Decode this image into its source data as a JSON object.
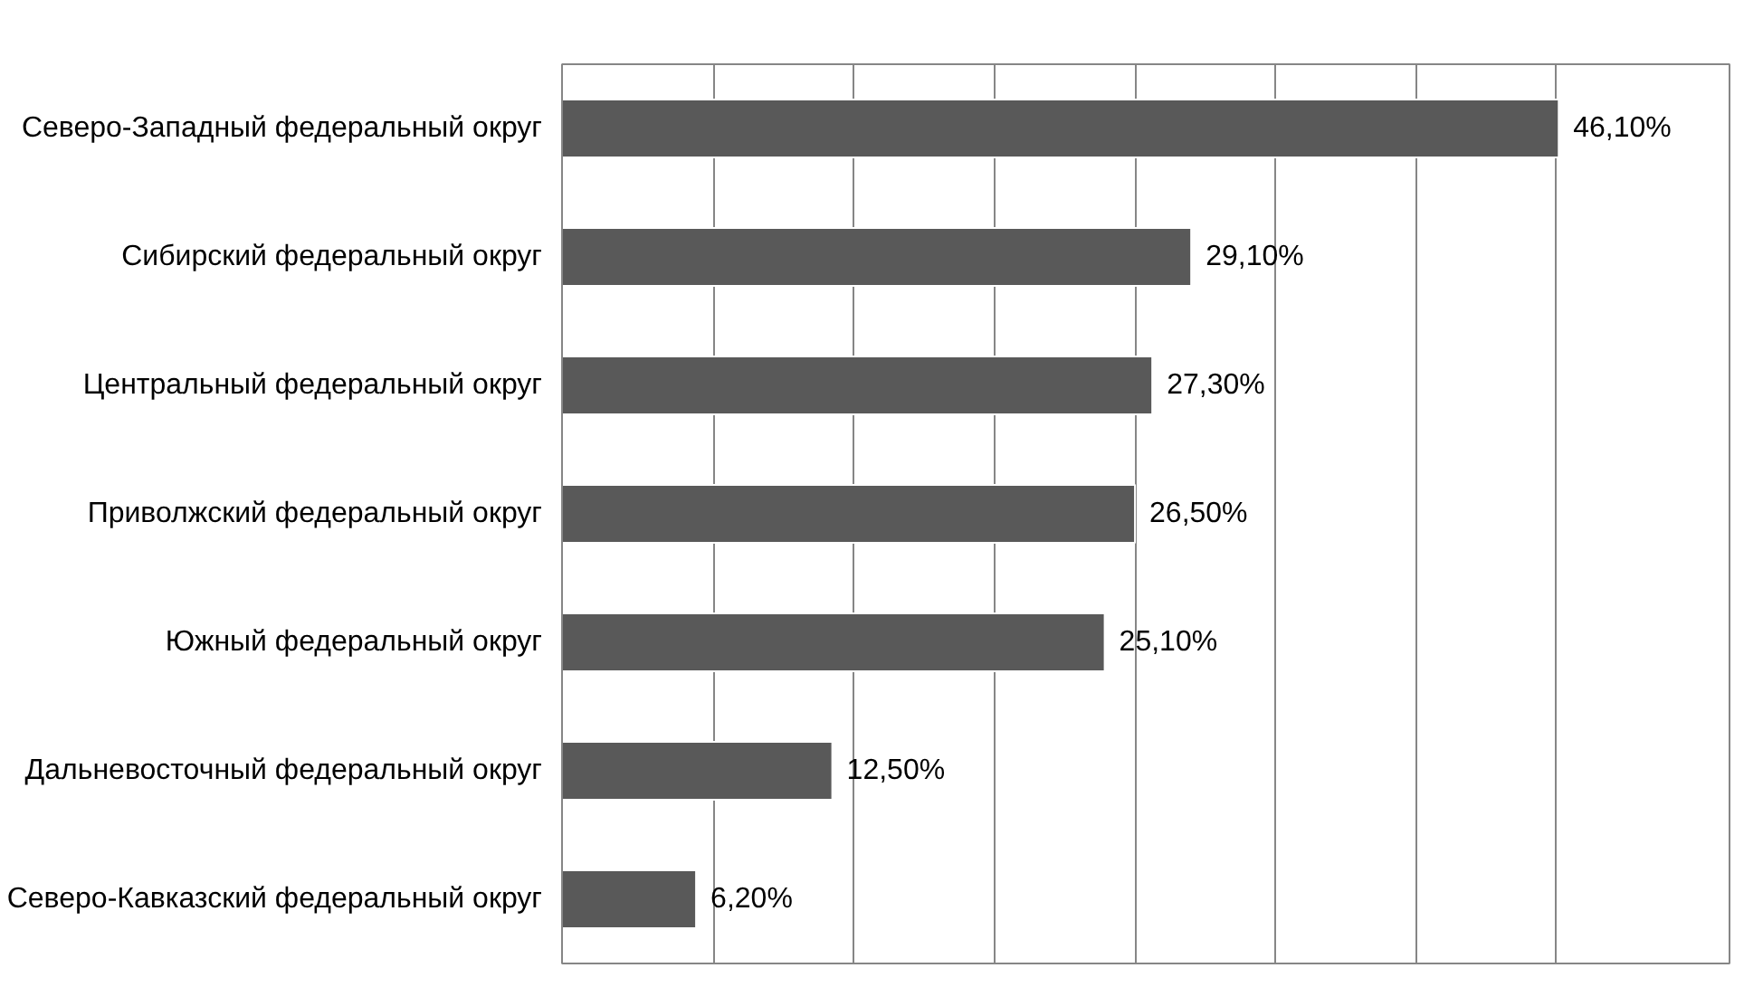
{
  "chart_data": {
    "type": "bar",
    "orientation": "horizontal",
    "categories": [
      "Северо-Западный федеральный округ",
      "Сибирский федеральный округ",
      "Центральный федеральный округ",
      "Приволжский федеральный округ",
      "Южный федеральный округ",
      "Дальневосточный федеральный округ",
      "Северо-Кавказский федеральный округ"
    ],
    "values": [
      46.1,
      29.1,
      27.3,
      26.5,
      25.1,
      12.5,
      6.2
    ],
    "value_labels": [
      "46,10%",
      "29,10%",
      "27,30%",
      "26,50%",
      "25,10%",
      "12,50%",
      "6,20%"
    ],
    "color": "#595959",
    "xlim": [
      0,
      54
    ],
    "xticks": [
      {
        "value": 7,
        "label": null
      },
      {
        "value": 13.5,
        "label": null
      },
      {
        "value": 20,
        "label": null
      },
      {
        "value": 26.5,
        "label": null
      },
      {
        "value": 33,
        "label": null
      },
      {
        "value": 39.5,
        "label": null
      },
      {
        "value": 46,
        "label": null
      }
    ],
    "grid": "x",
    "tick_labels": "y"
  }
}
